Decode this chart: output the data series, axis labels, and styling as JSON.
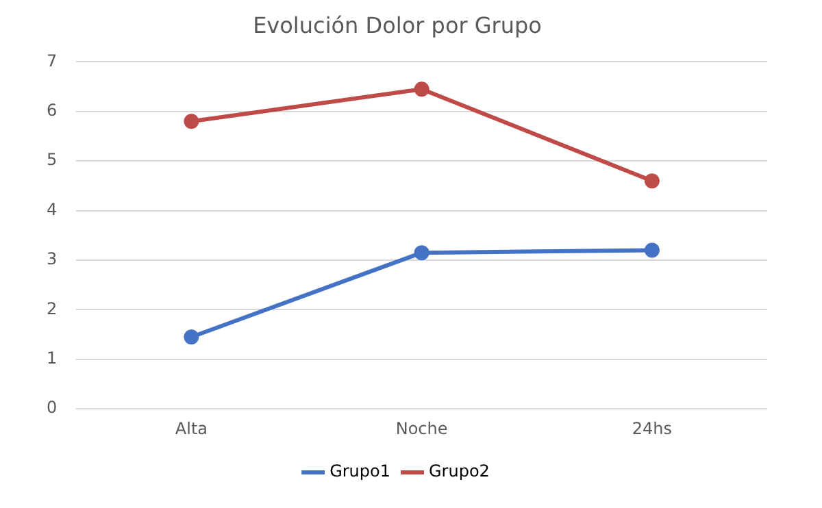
{
  "chart_data": {
    "type": "line",
    "title": "Evolución Dolor por Grupo",
    "categories": [
      "Alta",
      "Noche",
      "24hs"
    ],
    "series": [
      {
        "name": "Grupo1",
        "color": "#4472c4",
        "values": [
          1.45,
          3.15,
          3.2
        ]
      },
      {
        "name": "Grupo2",
        "color": "#be4b48",
        "values": [
          5.8,
          6.45,
          4.6
        ]
      }
    ],
    "ylim": [
      0,
      7
    ],
    "yticks": [
      0,
      1,
      2,
      3,
      4,
      5,
      6,
      7
    ],
    "grid": "y",
    "legend": "bottom",
    "marker": "circle",
    "line_style": "solid"
  }
}
